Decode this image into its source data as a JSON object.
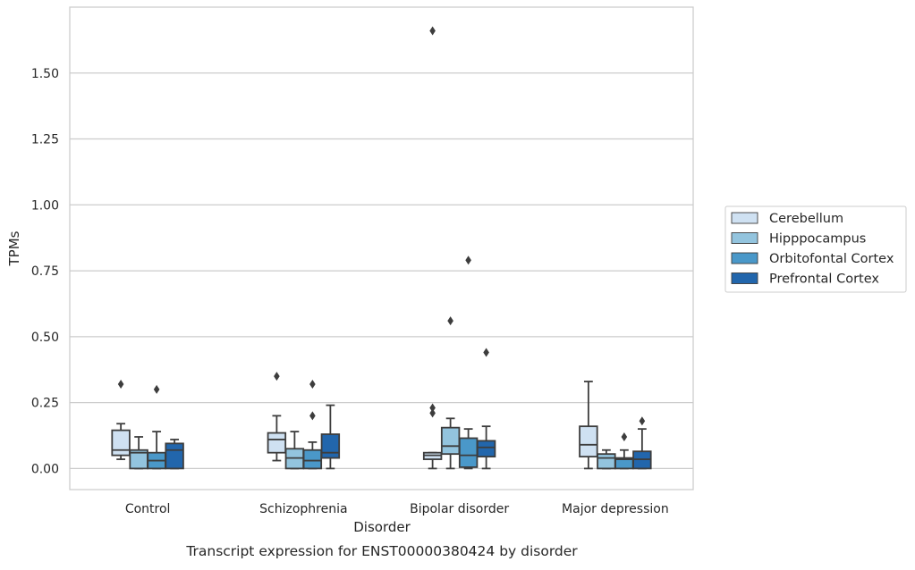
{
  "chart_data": {
    "type": "boxplot",
    "title": "",
    "caption": "Transcript expression for ENST00000380424 by disorder",
    "xlabel": "Disorder",
    "ylabel": "TPMs",
    "ylim": [
      -0.08,
      1.75
    ],
    "yticks": [
      "0.00",
      "0.25",
      "0.50",
      "0.75",
      "1.00",
      "1.25",
      "1.50"
    ],
    "ytick_values": [
      0,
      0.25,
      0.5,
      0.75,
      1.0,
      1.25,
      1.5
    ],
    "categories": [
      "Control",
      "Schizophrenia",
      "Bipolar disorder",
      "Major depression"
    ],
    "grid": "horizontal",
    "legend_position": "right",
    "series": [
      {
        "name": "Cerebellum",
        "color": "#cfe1f2",
        "boxes": [
          {
            "whislo": 0.035,
            "q1": 0.05,
            "med": 0.07,
            "q3": 0.145,
            "whishi": 0.17,
            "fliers": [
              0.32
            ]
          },
          {
            "whislo": 0.03,
            "q1": 0.06,
            "med": 0.11,
            "q3": 0.135,
            "whishi": 0.2,
            "fliers": [
              0.35
            ]
          },
          {
            "whislo": 0.0,
            "q1": 0.035,
            "med": 0.05,
            "q3": 0.06,
            "whishi": 0.06,
            "fliers": [
              0.21,
              0.23,
              1.66
            ]
          },
          {
            "whislo": 0.0,
            "q1": 0.045,
            "med": 0.09,
            "q3": 0.16,
            "whishi": 0.33,
            "fliers": []
          }
        ]
      },
      {
        "name": "Hipppocampus",
        "color": "#93c4de",
        "boxes": [
          {
            "whislo": 0.0,
            "q1": 0.0,
            "med": 0.06,
            "q3": 0.07,
            "whishi": 0.12,
            "fliers": []
          },
          {
            "whislo": 0.0,
            "q1": 0.0,
            "med": 0.04,
            "q3": 0.075,
            "whishi": 0.14,
            "fliers": []
          },
          {
            "whislo": 0.0,
            "q1": 0.055,
            "med": 0.085,
            "q3": 0.155,
            "whishi": 0.19,
            "fliers": [
              0.56
            ]
          },
          {
            "whislo": 0.0,
            "q1": 0.0,
            "med": 0.04,
            "q3": 0.055,
            "whishi": 0.07,
            "fliers": []
          }
        ]
      },
      {
        "name": "Orbitofontal Cortex",
        "color": "#4a98c9",
        "boxes": [
          {
            "whislo": 0.0,
            "q1": 0.0,
            "med": 0.03,
            "q3": 0.06,
            "whishi": 0.14,
            "fliers": [
              0.3
            ]
          },
          {
            "whislo": 0.0,
            "q1": 0.0,
            "med": 0.03,
            "q3": 0.07,
            "whishi": 0.1,
            "fliers": [
              0.2,
              0.32
            ]
          },
          {
            "whislo": 0.0,
            "q1": 0.005,
            "med": 0.05,
            "q3": 0.115,
            "whishi": 0.15,
            "fliers": [
              0.79
            ]
          },
          {
            "whislo": 0.0,
            "q1": 0.0,
            "med": 0.035,
            "q3": 0.04,
            "whishi": 0.07,
            "fliers": [
              0.12
            ]
          }
        ]
      },
      {
        "name": "Prefrontal Cortex",
        "color": "#2266ac",
        "boxes": [
          {
            "whislo": 0.0,
            "q1": 0.0,
            "med": 0.07,
            "q3": 0.095,
            "whishi": 0.11,
            "fliers": []
          },
          {
            "whislo": 0.0,
            "q1": 0.04,
            "med": 0.06,
            "q3": 0.13,
            "whishi": 0.24,
            "fliers": []
          },
          {
            "whislo": 0.0,
            "q1": 0.045,
            "med": 0.08,
            "q3": 0.105,
            "whishi": 0.16,
            "fliers": [
              0.44
            ]
          },
          {
            "whislo": 0.0,
            "q1": 0.0,
            "med": 0.035,
            "q3": 0.065,
            "whishi": 0.15,
            "fliers": [
              0.18
            ]
          }
        ]
      }
    ]
  }
}
